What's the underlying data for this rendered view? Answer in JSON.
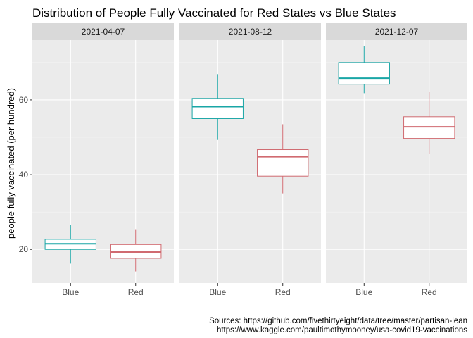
{
  "chart_data": {
    "type": "boxplot",
    "title": "Distribution of People Fully Vaccinated for Red States vs Blue States",
    "ylabel": "people fully vaccinated (per hundred)",
    "xlabel": "",
    "ylim": [
      11,
      76
    ],
    "yticks": [
      20,
      40,
      60
    ],
    "categories": [
      "Blue",
      "Red"
    ],
    "colors": {
      "Blue": "#1aa6a6",
      "Red": "#d06a70"
    },
    "grid": true,
    "legend": "none",
    "facets": [
      {
        "label": "2021-04-07",
        "boxes": [
          {
            "group": "Blue",
            "min": 16.2,
            "q1": 20.0,
            "median": 21.5,
            "q3": 22.7,
            "max": 26.6
          },
          {
            "group": "Red",
            "min": 14.1,
            "q1": 17.6,
            "median": 19.3,
            "q3": 21.3,
            "max": 25.4
          }
        ]
      },
      {
        "label": "2021-08-12",
        "boxes": [
          {
            "group": "Blue",
            "min": 49.3,
            "q1": 55.0,
            "median": 58.2,
            "q3": 60.4,
            "max": 66.9
          },
          {
            "group": "Red",
            "min": 35.0,
            "q1": 39.6,
            "median": 44.8,
            "q3": 46.7,
            "max": 53.5
          }
        ]
      },
      {
        "label": "2021-12-07",
        "boxes": [
          {
            "group": "Blue",
            "min": 61.8,
            "q1": 64.2,
            "median": 65.8,
            "q3": 70.0,
            "max": 74.3
          },
          {
            "group": "Red",
            "min": 45.6,
            "q1": 49.7,
            "median": 52.8,
            "q3": 55.5,
            "max": 62.1
          }
        ]
      }
    ]
  },
  "caption": {
    "line1": "Sources: https://github.com/fivethirtyeight/data/tree/master/partisan-lean",
    "line2": "https://www.kaggle.com/paultimothymooney/usa-covid19-vaccinations"
  }
}
